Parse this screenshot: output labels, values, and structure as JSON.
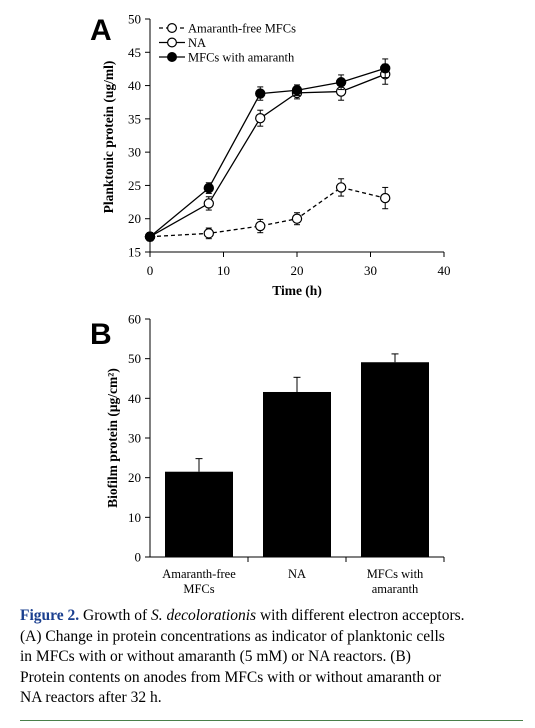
{
  "chart_data": [
    {
      "panel": "A",
      "type": "line",
      "xlabel": "Time (h)",
      "ylabel": "Planktonic protein (ug/ml)",
      "xlim": [
        0,
        40
      ],
      "ylim": [
        15,
        50
      ],
      "xticks": [
        0,
        10,
        20,
        30,
        40
      ],
      "yticks": [
        15,
        20,
        25,
        30,
        35,
        40,
        45,
        50
      ],
      "legend_position": "top-left",
      "series": [
        {
          "name": "Amaranth-free MFCs",
          "marker": "open-circle",
          "line": "dashed",
          "x": [
            0,
            8,
            15,
            20,
            26,
            32
          ],
          "y": [
            17.3,
            17.8,
            18.9,
            20.0,
            24.7,
            23.1
          ],
          "err": [
            0.6,
            0.8,
            1.0,
            0.9,
            1.3,
            1.6
          ]
        },
        {
          "name": "NA",
          "marker": "open-circle",
          "line": "solid",
          "x": [
            0,
            8,
            15,
            20,
            26,
            32
          ],
          "y": [
            17.3,
            22.3,
            35.1,
            38.9,
            39.1,
            41.7
          ],
          "err": [
            0.6,
            1.0,
            1.2,
            0.9,
            1.3,
            1.5
          ]
        },
        {
          "name": "MFCs with amaranth",
          "marker": "filled-circle",
          "line": "solid",
          "x": [
            0,
            8,
            15,
            20,
            26,
            32
          ],
          "y": [
            17.3,
            24.6,
            38.8,
            39.3,
            40.5,
            42.6
          ],
          "err": [
            0.6,
            0.8,
            1.0,
            0.8,
            1.1,
            1.4
          ]
        }
      ]
    },
    {
      "panel": "B",
      "type": "bar",
      "ylabel": "Biofilm protein (μg/cm²)",
      "ylim": [
        0,
        60
      ],
      "yticks": [
        0,
        10,
        20,
        30,
        40,
        50,
        60
      ],
      "categories": [
        "Amaranth-free MFCs",
        "NA",
        "MFCs with amaranth"
      ],
      "category_lines": [
        [
          "Amaranth-free",
          "MFCs"
        ],
        [
          "NA"
        ],
        [
          "MFCs with",
          "amaranth"
        ]
      ],
      "values": [
        21.5,
        41.6,
        49.1
      ],
      "err": [
        3.3,
        3.7,
        2.1
      ],
      "bar_color": "#000000"
    }
  ],
  "caption": {
    "lead": "Figure 2.",
    "pre": "Growth of",
    "species": "S. decolorationis",
    "lines": [
      "with different electron acceptors.",
      "(A) Change in protein concentrations as indicator of planktonic cells",
      "in MFCs with or without amaranth (5 mM) or NA reactors. (B)",
      "Protein contents on anodes from MFCs with or without amaranth or",
      "NA reactors after 32 h."
    ]
  },
  "colors": {
    "caption_lead": "#1a3f8f",
    "rule": "#4a7f4a",
    "ink": "#000000"
  }
}
